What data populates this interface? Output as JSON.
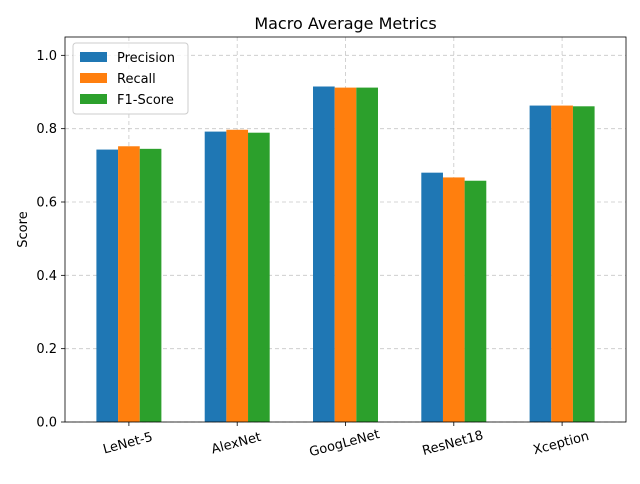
{
  "chart_data": {
    "type": "bar",
    "title": "Macro Average Metrics",
    "xlabel": "",
    "ylabel": "Score",
    "ylim": [
      0,
      1.05
    ],
    "yticks": [
      0.0,
      0.2,
      0.4,
      0.6,
      0.8,
      1.0
    ],
    "ytick_labels": [
      "0.0",
      "0.2",
      "0.4",
      "0.6",
      "0.8",
      "1.0"
    ],
    "grid": true,
    "legend_position": "top-left",
    "categories": [
      "LeNet-5",
      "AlexNet",
      "GoogLeNet",
      "ResNet18",
      "Xception"
    ],
    "series": [
      {
        "name": "Precision",
        "color": "#1f77b4",
        "values": [
          0.743,
          0.792,
          0.915,
          0.68,
          0.863
        ]
      },
      {
        "name": "Recall",
        "color": "#ff7f0e",
        "values": [
          0.752,
          0.797,
          0.912,
          0.667,
          0.863
        ]
      },
      {
        "name": "F1-Score",
        "color": "#2ca02c",
        "values": [
          0.745,
          0.789,
          0.912,
          0.658,
          0.861
        ]
      }
    ]
  }
}
